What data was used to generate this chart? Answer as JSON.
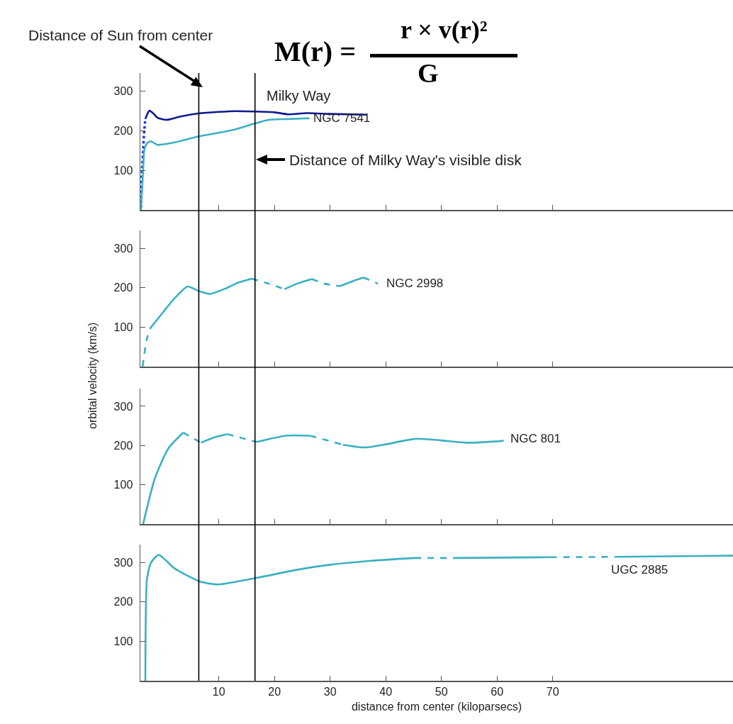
{
  "chart_data": [
    {
      "type": "line",
      "xlim": [
        -4.1,
        102.4
      ],
      "xticks": [
        10,
        20,
        30,
        40,
        50,
        60,
        70
      ],
      "ylim": [
        0,
        345
      ],
      "yticks": [
        100,
        200,
        300
      ],
      "tick_labels": "y",
      "annotations": [
        "M(r) =",
        "r × v(r)²",
        "G",
        "Milky Way",
        "NGC 7541"
      ],
      "ref_lines": [
        {
          "axis": "x",
          "value": 6.4,
          "label": "Distance of Sun from center",
          "color": "#000000"
        },
        {
          "axis": "x",
          "value": 16.5,
          "label": "Distance of Milky Way's visible disk",
          "color": "#000000"
        }
      ],
      "series": [
        {
          "color": "#1a35e8",
          "line_style": "dotted",
          "x": [
            -4.0,
            -3.9,
            -3.8,
            -3.6,
            -3.4,
            -3.2
          ],
          "values": [
            5,
            50,
            100,
            150,
            200,
            229
          ]
        },
        {
          "color": "#0d1a8f",
          "line_style": "solid",
          "x": [
            -3.2,
            -2.9,
            -2.5,
            -1.9,
            -1,
            0.6,
            3,
            6.3,
            10,
            13.1,
            16.5,
            20,
            22.5,
            25.8,
            30,
            36.5
          ],
          "values": [
            229,
            240,
            250,
            245,
            232,
            227,
            235,
            243,
            247,
            249,
            248,
            246,
            241,
            244,
            242,
            240
          ]
        },
        {
          "color": "#3bb0c2",
          "line_style": "solid",
          "x": [
            -4.0,
            -3.6,
            -3.4,
            -2.9,
            -2.2,
            -1.0,
            2,
            6.3,
            12.7,
            16.5,
            19,
            22.5,
            26.3
          ],
          "values": [
            0,
            100,
            150,
            168,
            173,
            164,
            170,
            185,
            202,
            218,
            227,
            229,
            231
          ]
        }
      ]
    },
    {
      "type": "line",
      "xlim": [
        -4.1,
        102.4
      ],
      "xticks": [
        10,
        20,
        30,
        40,
        50,
        60,
        70
      ],
      "ylim": [
        0,
        345
      ],
      "yticks": [
        100,
        200,
        300
      ],
      "tick_labels": "y",
      "ylabel": "orbital velocity (km/s)",
      "annotations": [
        "NGC 2998"
      ],
      "ref_lines": [
        {
          "axis": "x",
          "value": 6.4,
          "color": "#000000"
        },
        {
          "axis": "x",
          "value": 16.5,
          "color": "#000000"
        }
      ],
      "series": [
        {
          "color": "#3bb0c2",
          "line_style": "dashed",
          "x": [
            -3.7,
            -3.0,
            -2.4
          ],
          "values": [
            0,
            66,
            96
          ]
        },
        {
          "color": "#3bb0c2",
          "line_style": "solid",
          "x": [
            -2.4,
            0,
            2.1,
            4.4,
            6.3,
            8.4,
            11.4,
            13.5,
            15.9
          ],
          "values": [
            96,
            138,
            174,
            203,
            192,
            184,
            199,
            213,
            223
          ]
        },
        {
          "color": "#3bb0c2",
          "line_style": "dashed",
          "x": [
            15.9,
            19,
            21.8
          ],
          "values": [
            223,
            210,
            196
          ]
        },
        {
          "color": "#3bb0c2",
          "line_style": "solid",
          "x": [
            21.8,
            24,
            26.7
          ],
          "values": [
            196,
            210,
            222
          ]
        },
        {
          "color": "#3bb0c2",
          "line_style": "dashed",
          "x": [
            26.7,
            29,
            31.8
          ],
          "values": [
            222,
            210,
            204
          ]
        },
        {
          "color": "#3bb0c2",
          "line_style": "solid",
          "x": [
            31.8,
            34,
            36
          ],
          "values": [
            204,
            216,
            226
          ]
        },
        {
          "color": "#3bb0c2",
          "line_style": "dashed",
          "x": [
            36,
            38.6
          ],
          "values": [
            226,
            210
          ]
        }
      ]
    },
    {
      "type": "line",
      "xlim": [
        -4.1,
        102.4
      ],
      "xticks": [
        10,
        20,
        30,
        40,
        50,
        60,
        70
      ],
      "ylim": [
        0,
        345
      ],
      "yticks": [
        100,
        200,
        300
      ],
      "tick_labels": "y",
      "annotations": [
        "NGC 801"
      ],
      "ref_lines": [
        {
          "axis": "x",
          "value": 6.4,
          "color": "#000000"
        },
        {
          "axis": "x",
          "value": 16.5,
          "color": "#000000"
        }
      ],
      "series": [
        {
          "color": "#3bb0c2",
          "line_style": "solid",
          "x": [
            -3.6,
            -1.5,
            0.9,
            3.6
          ],
          "values": [
            0,
            116,
            192,
            233
          ]
        },
        {
          "color": "#3bb0c2",
          "line_style": "dashed",
          "x": [
            3.6,
            6.8
          ],
          "values": [
            233,
            207
          ]
        },
        {
          "color": "#3bb0c2",
          "line_style": "solid",
          "x": [
            6.8,
            9,
            11.5
          ],
          "values": [
            207,
            220,
            229
          ]
        },
        {
          "color": "#3bb0c2",
          "line_style": "dashed",
          "x": [
            11.5,
            16.8
          ],
          "values": [
            229,
            209
          ]
        },
        {
          "color": "#3bb0c2",
          "line_style": "solid",
          "x": [
            16.8,
            22,
            26.4
          ],
          "values": [
            209,
            225,
            225
          ]
        },
        {
          "color": "#3bb0c2",
          "line_style": "dashed",
          "x": [
            26.4,
            32.3
          ],
          "values": [
            225,
            202
          ]
        },
        {
          "color": "#3bb0c2",
          "line_style": "solid",
          "x": [
            32.3,
            36.2,
            40,
            45.3,
            50,
            54.8,
            61.2
          ],
          "values": [
            202,
            195,
            203,
            217,
            213,
            207,
            212
          ]
        }
      ]
    },
    {
      "type": "line",
      "xlim": [
        -4.1,
        102.4
      ],
      "xticks": [
        10,
        20,
        30,
        40,
        50,
        60,
        70
      ],
      "ylim": [
        0,
        345
      ],
      "yticks": [
        100,
        200,
        300
      ],
      "xlabel": "distance from center (kiloparsecs)",
      "annotations": [
        "UGC 2885"
      ],
      "ref_lines": [
        {
          "axis": "x",
          "value": 6.4,
          "color": "#000000"
        },
        {
          "axis": "x",
          "value": 16.5,
          "color": "#000000"
        }
      ],
      "series": [
        {
          "color": "#3bb0c2",
          "line_style": "solid",
          "x": [
            -3.2,
            -2.9,
            -2.2,
            -0.8,
            2.1,
            6.7,
            9.8,
            16.9,
            24,
            30,
            37.4,
            45.2
          ],
          "values": [
            0,
            259,
            299,
            319,
            284,
            251,
            244,
            261,
            281,
            294,
            304,
            311
          ]
        },
        {
          "color": "#3bb0c2",
          "line_style": "dashed",
          "x": [
            45.2,
            53
          ],
          "values": [
            311,
            311
          ]
        },
        {
          "color": "#3bb0c2",
          "line_style": "solid",
          "x": [
            53,
            69.6
          ],
          "values": [
            311,
            313
          ]
        },
        {
          "color": "#3bb0c2",
          "line_style": "dashed",
          "x": [
            69.6,
            81.3
          ],
          "values": [
            313,
            314
          ]
        },
        {
          "color": "#3bb0c2",
          "line_style": "solid",
          "x": [
            81.3,
            102.4
          ],
          "values": [
            314,
            317
          ]
        }
      ]
    }
  ]
}
